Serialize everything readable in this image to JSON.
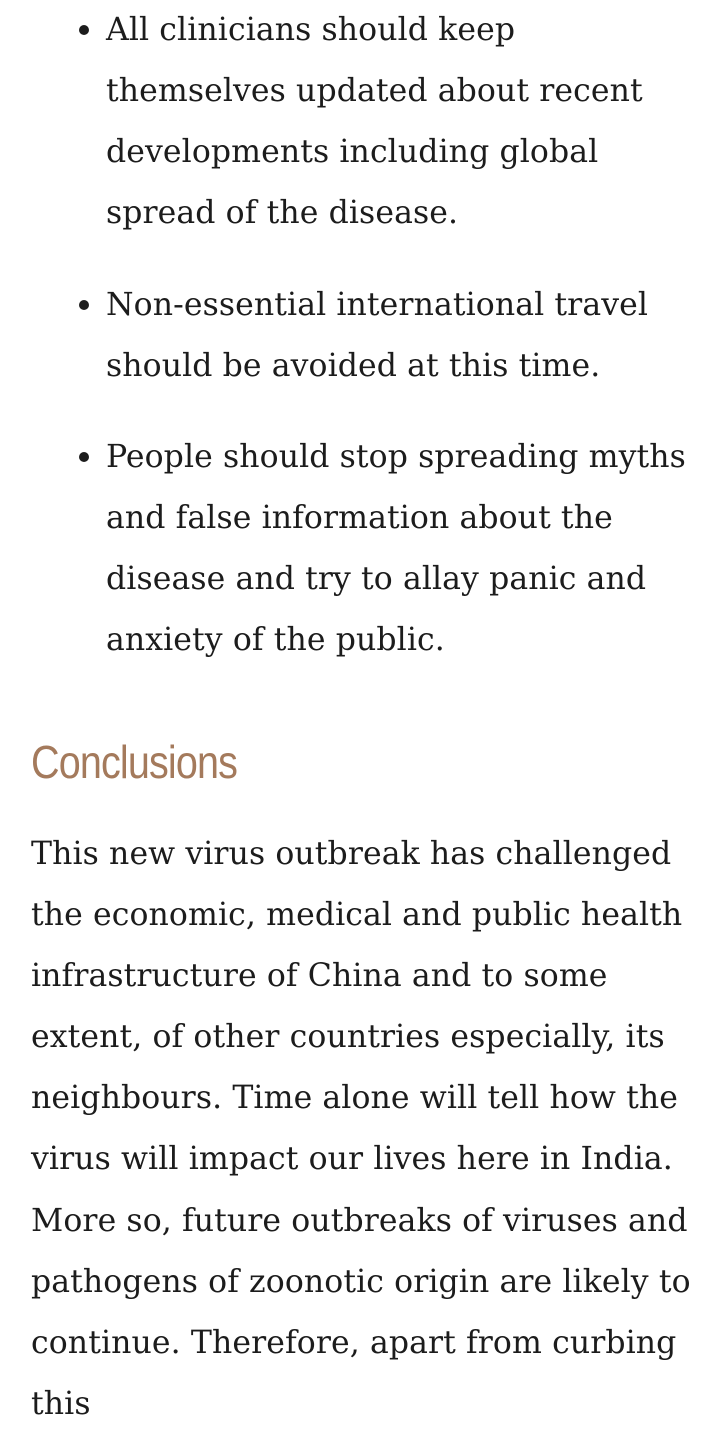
{
  "bullets": [
    "All clinicians should keep themselves updated about recent developments including global spread of the disease.",
    "Non-essential international travel should be avoided at this time.",
    "People should stop spreading myths and false information about the disease and try to allay panic and anxiety of the public."
  ],
  "section": {
    "heading": "Conclusions",
    "paragraph": "This new virus outbreak has challenged the economic, medical and public health infrastructure of China and to some extent, of other countries especially, its neighbours. Time alone will tell how the virus will impact our lives here in India. More so, future outbreaks of viruses and pathogens of zoonotic origin are likely to continue. Therefore, apart from curbing this"
  },
  "colors": {
    "heading": "#a47a5c",
    "text": "#1c1c1c",
    "background": "#ffffff"
  }
}
